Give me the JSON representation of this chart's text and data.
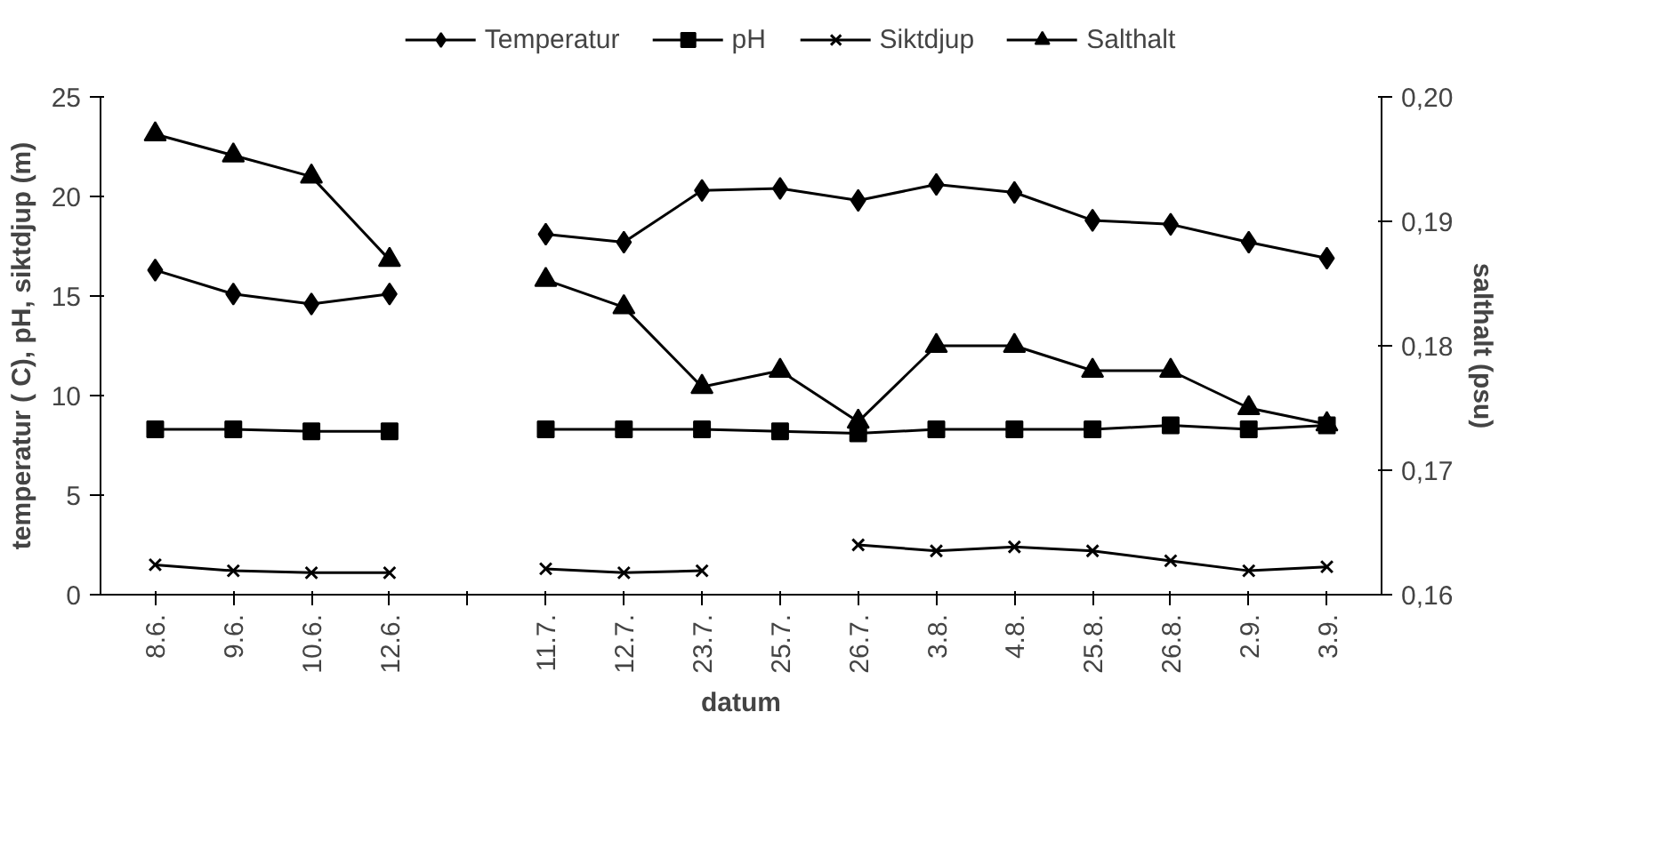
{
  "chart_data": {
    "type": "line",
    "xlabel": "datum",
    "ylabel": "temperatur ( C), pH, siktdjup (m)",
    "y2label": "salthalt (psu)",
    "categories": [
      "8.6.",
      "9.6.",
      "10.6.",
      "12.6.",
      null,
      "11.7.",
      "12.7.",
      "23.7.",
      "25.7.",
      "26.7.",
      "3.8.",
      "4.8.",
      "25.8.",
      "26.8.",
      "2.9.",
      "3.9."
    ],
    "ylim": [
      0,
      25
    ],
    "yticks": [
      0,
      5,
      10,
      15,
      20,
      25
    ],
    "y2lim": [
      0.16,
      0.2
    ],
    "y2ticks": [
      {
        "value": 0.16,
        "label": "0,16"
      },
      {
        "value": 0.17,
        "label": "0,17"
      },
      {
        "value": 0.18,
        "label": "0,18"
      },
      {
        "value": 0.19,
        "label": "0,19"
      },
      {
        "value": 0.2,
        "label": "0,20"
      }
    ],
    "grid": false,
    "legend": "top",
    "line_style": "solid",
    "series": [
      {
        "name": "Temperatur",
        "color": "#000000",
        "marker": "diamond",
        "values": [
          16.3,
          15.1,
          14.6,
          15.1,
          null,
          18.1,
          17.7,
          20.3,
          20.4,
          19.8,
          20.6,
          20.2,
          18.8,
          18.6,
          17.7,
          16.9
        ]
      },
      {
        "name": "pH",
        "color": "#000000",
        "marker": "square",
        "values": [
          8.3,
          8.3,
          8.2,
          8.2,
          null,
          8.3,
          8.3,
          8.3,
          8.2,
          8.1,
          8.3,
          8.3,
          8.3,
          8.5,
          8.3,
          8.5
        ]
      },
      {
        "name": "Siktdjup",
        "color": "#000000",
        "marker": "cross",
        "values": [
          1.5,
          1.2,
          1.1,
          1.1,
          null,
          1.3,
          1.1,
          1.2,
          null,
          2.5,
          2.2,
          2.4,
          2.2,
          1.7,
          1.2,
          1.4
        ]
      },
      {
        "name": "Salthalt",
        "color": "#000000",
        "marker": "triangle",
        "axis": "y2",
        "values": [
          0.197,
          0.1953,
          0.1936,
          0.1869,
          null,
          0.1853,
          0.1831,
          0.1767,
          0.178,
          0.1739,
          0.18,
          0.18,
          0.178,
          0.178,
          0.175,
          0.1737
        ]
      }
    ]
  }
}
